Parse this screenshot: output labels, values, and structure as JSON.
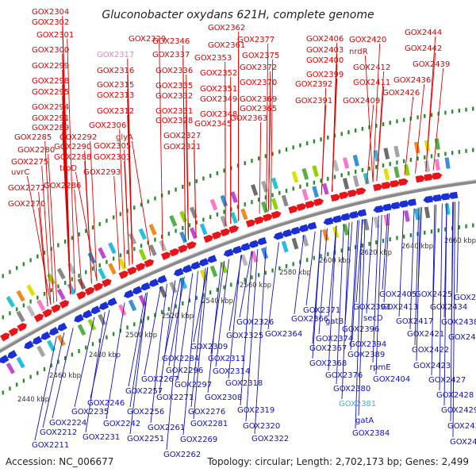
{
  "title": "Gluconobacter oxydans 621H, complete genome",
  "accession_text": "Accession: NC_006677",
  "topology_text": "Topology: circular; Length: 2,702,173 bp; Genes: 2,499",
  "colors": {
    "forward_gene": "#e8141a",
    "reverse_gene": "#1a2fd6",
    "label_forward": "#e00000",
    "label_reverse": "#1010c0",
    "label_highlight_pink": "#f080c0",
    "label_highlight_cyan": "#38b4e8",
    "backbone": "#8a8a8a",
    "tick": "#2e8b2e"
  },
  "kbp_labels": [
    "2440 kbp",
    "2460 kbp",
    "2480 kbp",
    "2500 kbp",
    "2520 kbp",
    "2540 kbp",
    "2560 kbp",
    "2580 kbp",
    "2600 kbp",
    "2620 kbp",
    "2640 kbp",
    "2660 kbp"
  ],
  "forward_labels": [
    {
      "text": "GOX2304",
      "color": "red"
    },
    {
      "text": "GOX2302",
      "color": "red"
    },
    {
      "text": "GOX2301",
      "color": "red"
    },
    {
      "text": "GOX2300",
      "color": "red"
    },
    {
      "text": "GOX2299",
      "color": "red"
    },
    {
      "text": "GOX2298",
      "color": "red"
    },
    {
      "text": "GOX2295",
      "color": "red"
    },
    {
      "text": "GOX2294",
      "color": "red"
    },
    {
      "text": "GOX2291",
      "color": "red"
    },
    {
      "text": "GOX2289",
      "color": "red"
    },
    {
      "text": "GOX2285",
      "color": "red"
    },
    {
      "text": "GOX2292",
      "color": "red"
    },
    {
      "text": "GOX2290",
      "color": "red"
    },
    {
      "text": "GOX2280",
      "color": "red"
    },
    {
      "text": "GOX2288",
      "color": "red"
    },
    {
      "text": "GOX2275",
      "color": "red"
    },
    {
      "text": "trpD",
      "color": "red"
    },
    {
      "text": "uvrC",
      "color": "red"
    },
    {
      "text": "GOX2293",
      "color": "red"
    },
    {
      "text": "GOX2286",
      "color": "red"
    },
    {
      "text": "GOX2272",
      "color": "red"
    },
    {
      "text": "GOX2270",
      "color": "red"
    },
    {
      "text": "GOX2329",
      "color": "red"
    },
    {
      "text": "GOX2317",
      "color": "pink"
    },
    {
      "text": "GOX2316",
      "color": "red"
    },
    {
      "text": "GOX2315",
      "color": "red"
    },
    {
      "text": "GOX2313",
      "color": "red"
    },
    {
      "text": "GOX2312",
      "color": "red"
    },
    {
      "text": "GOX2306",
      "color": "red"
    },
    {
      "text": "glyA",
      "color": "red"
    },
    {
      "text": "GOX2305",
      "color": "red"
    },
    {
      "text": "GOX2303",
      "color": "red"
    },
    {
      "text": "GOX2346",
      "color": "red"
    },
    {
      "text": "GOX2337",
      "color": "red"
    },
    {
      "text": "GOX2336",
      "color": "red"
    },
    {
      "text": "GOX2335",
      "color": "red"
    },
    {
      "text": "GOX2332",
      "color": "red"
    },
    {
      "text": "GOX2331",
      "color": "red"
    },
    {
      "text": "GOX2328",
      "color": "red"
    },
    {
      "text": "GOX2327",
      "color": "red"
    },
    {
      "text": "GOX2321",
      "color": "red"
    },
    {
      "text": "GOX2362",
      "color": "red"
    },
    {
      "text": "GOX2361",
      "color": "red"
    },
    {
      "text": "GOX2353",
      "color": "red"
    },
    {
      "text": "GOX2352",
      "color": "red"
    },
    {
      "text": "GOX2351",
      "color": "red"
    },
    {
      "text": "GOX2349",
      "color": "red"
    },
    {
      "text": "GOX2348",
      "color": "red"
    },
    {
      "text": "GOX2345",
      "color": "red"
    },
    {
      "text": "GOX2377",
      "color": "red"
    },
    {
      "text": "GOX2375",
      "color": "red"
    },
    {
      "text": "GOX2372",
      "color": "red"
    },
    {
      "text": "GOX2370",
      "color": "red"
    },
    {
      "text": "GOX2369",
      "color": "red"
    },
    {
      "text": "GOX2365",
      "color": "red"
    },
    {
      "text": "GOX2363",
      "color": "red"
    },
    {
      "text": "GOX2406",
      "color": "red"
    },
    {
      "text": "GOX2403",
      "color": "red"
    },
    {
      "text": "GOX2400",
      "color": "red"
    },
    {
      "text": "GOX2399",
      "color": "red"
    },
    {
      "text": "GOX2392",
      "color": "red"
    },
    {
      "text": "GOX2391",
      "color": "red"
    },
    {
      "text": "GOX2420",
      "color": "red"
    },
    {
      "text": "nrdR",
      "color": "red"
    },
    {
      "text": "GOX2412",
      "color": "red"
    },
    {
      "text": "GOX2411",
      "color": "red"
    },
    {
      "text": "GOX2409",
      "color": "red"
    },
    {
      "text": "GOX2444",
      "color": "red"
    },
    {
      "text": "GOX2442",
      "color": "red"
    },
    {
      "text": "GOX2439",
      "color": "red"
    },
    {
      "text": "GOX2436",
      "color": "red"
    },
    {
      "text": "GOX2426",
      "color": "red"
    }
  ],
  "reverse_labels": [
    {
      "text": "GOX2326",
      "color": "blue"
    },
    {
      "text": "GOX2325",
      "color": "blue"
    },
    {
      "text": "GOX2309",
      "color": "blue"
    },
    {
      "text": "GOX2311",
      "color": "blue"
    },
    {
      "text": "GOX2314",
      "color": "blue"
    },
    {
      "text": "GOX2284",
      "color": "blue"
    },
    {
      "text": "GOX2296",
      "color": "blue"
    },
    {
      "text": "GOX2318",
      "color": "blue"
    },
    {
      "text": "GOX2267",
      "color": "blue"
    },
    {
      "text": "GOX2297",
      "color": "blue"
    },
    {
      "text": "GOX2257",
      "color": "blue"
    },
    {
      "text": "GOX2271",
      "color": "blue"
    },
    {
      "text": "GOX2246",
      "color": "blue"
    },
    {
      "text": "GOX2308",
      "color": "blue"
    },
    {
      "text": "GOX2224",
      "color": "blue"
    },
    {
      "text": "GOX2235",
      "color": "blue"
    },
    {
      "text": "GOX2256",
      "color": "blue"
    },
    {
      "text": "GOX2276",
      "color": "blue"
    },
    {
      "text": "GOX2319",
      "color": "blue"
    },
    {
      "text": "GOX2242",
      "color": "blue"
    },
    {
      "text": "GOX2281",
      "color": "blue"
    },
    {
      "text": "GOX2212",
      "color": "blue"
    },
    {
      "text": "GOX2261",
      "color": "blue"
    },
    {
      "text": "GOX2320",
      "color": "blue"
    },
    {
      "text": "GOX2231",
      "color": "blue"
    },
    {
      "text": "GOX2251",
      "color": "blue"
    },
    {
      "text": "GOX2269",
      "color": "blue"
    },
    {
      "text": "GOX2322",
      "color": "blue"
    },
    {
      "text": "GOX2211",
      "color": "blue"
    },
    {
      "text": "GOX2262",
      "color": "blue"
    },
    {
      "text": "GOX2364",
      "color": "blue"
    },
    {
      "text": "GOX2371",
      "color": "blue"
    },
    {
      "text": "GOX2366",
      "color": "blue"
    },
    {
      "text": "GOX2374",
      "color": "blue"
    },
    {
      "text": "GOX2367",
      "color": "blue"
    },
    {
      "text": "GOX2368",
      "color": "blue"
    },
    {
      "text": "GOX2376",
      "color": "blue"
    },
    {
      "text": "GOX2380",
      "color": "blue"
    },
    {
      "text": "GOX2381",
      "color": "cyan"
    },
    {
      "text": "gatA",
      "color": "blue"
    },
    {
      "text": "GOX2384",
      "color": "blue"
    },
    {
      "text": "gatB",
      "color": "blue"
    },
    {
      "text": "GOX2393",
      "color": "blue"
    },
    {
      "text": "secD",
      "color": "blue"
    },
    {
      "text": "GOX2396",
      "color": "blue"
    },
    {
      "text": "GOX2394",
      "color": "blue"
    },
    {
      "text": "GOX2389",
      "color": "blue"
    },
    {
      "text": "rpmE",
      "color": "blue"
    },
    {
      "text": "GOX2404",
      "color": "blue"
    },
    {
      "text": "GOX2405",
      "color": "blue"
    },
    {
      "text": "GOX2413",
      "color": "blue"
    },
    {
      "text": "GOX2417",
      "color": "blue"
    },
    {
      "text": "GOX2421",
      "color": "blue"
    },
    {
      "text": "GOX2422",
      "color": "blue"
    },
    {
      "text": "GOX2423",
      "color": "blue"
    },
    {
      "text": "GOX2425",
      "color": "blue"
    },
    {
      "text": "GOX2434",
      "color": "blue"
    },
    {
      "text": "GOX2438",
      "color": "blue"
    },
    {
      "text": "GOX2443",
      "color": "blue"
    },
    {
      "text": "GOX2446",
      "color": "blue"
    },
    {
      "text": "GOX2427",
      "color": "blue"
    },
    {
      "text": "GOX2428",
      "color": "blue"
    },
    {
      "text": "GOX2429",
      "color": "blue"
    },
    {
      "text": "GOX2430",
      "color": "blue"
    },
    {
      "text": "GOX2431",
      "color": "blue"
    }
  ]
}
